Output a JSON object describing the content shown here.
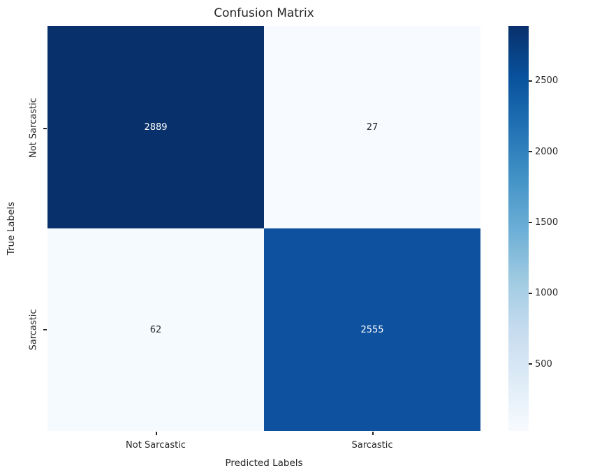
{
  "title": "Confusion Matrix",
  "colors": {
    "background": "#ffffff",
    "text": "#262626",
    "annotation_on_dark": "#ffffff",
    "annotation_on_light": "#262626",
    "darkest_cell": "#08306b",
    "lightest_cell": "#f7fbff"
  },
  "chart_data": {
    "type": "heatmap",
    "title": "Confusion Matrix",
    "xlabel": "Predicted Labels",
    "ylabel": "True Labels",
    "x_categories": [
      "Not Sarcastic",
      "Sarcastic"
    ],
    "y_categories": [
      "Not Sarcastic",
      "Sarcastic"
    ],
    "values": [
      [
        2889,
        27
      ],
      [
        62,
        2555
      ]
    ],
    "vmin": 27,
    "vmax": 2889,
    "colormap": "Blues",
    "grid": false,
    "legend_position": "right-colorbar",
    "cells": [
      {
        "row": "Not Sarcastic",
        "col": "Not Sarcastic",
        "value": "2889",
        "color": "#08306b",
        "text_color": "#ffffff"
      },
      {
        "row": "Not Sarcastic",
        "col": "Sarcastic",
        "value": "27",
        "color": "#f7fbff",
        "text_color": "#2b2b2b"
      },
      {
        "row": "Sarcastic",
        "col": "Not Sarcastic",
        "value": "62",
        "color": "#f5fafe",
        "text_color": "#2b2b2b"
      },
      {
        "row": "Sarcastic",
        "col": "Sarcastic",
        "value": "2555",
        "color": "#0d519f",
        "text_color": "#ffffff"
      }
    ],
    "colorbar": {
      "ticks": [
        500,
        1000,
        1500,
        2000,
        2500
      ],
      "gradient_top_to_bottom": [
        "#08306b",
        "#08519c",
        "#2171b5",
        "#4292c6",
        "#6baed6",
        "#9ecae1",
        "#c6dbef",
        "#deebf7",
        "#f7fbff"
      ]
    }
  }
}
